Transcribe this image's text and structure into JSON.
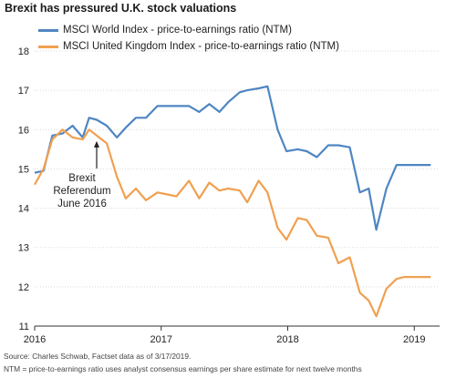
{
  "title": "Brexit has pressured U.K. stock valuations",
  "source": "Source: Charles Schwab, Factset data as of 3/17/2019.",
  "note": "NTM = price-to-earnings ratio uses analyst consensus earnings per share estimate for next twelve months",
  "chart_data": {
    "type": "line",
    "title": "Brexit has pressured U.K. stock valuations",
    "xlabel": "",
    "ylabel": "",
    "xlim": [
      2016.0,
      2019.2
    ],
    "ylim": [
      11,
      18
    ],
    "y_ticks": [
      11,
      12,
      13,
      14,
      15,
      16,
      17,
      18
    ],
    "x_ticks": [
      {
        "value": 2016,
        "label": "2016"
      },
      {
        "value": 2017,
        "label": "2017"
      },
      {
        "value": 2018,
        "label": "2018"
      },
      {
        "value": 2019,
        "label": "2019"
      }
    ],
    "grid": "horizontal",
    "legend_placement": "top-left",
    "series": [
      {
        "name": "MSCI World Index - price-to-earnings ratio (NTM)",
        "color": "#4f86c2",
        "x": [
          2016.0,
          2016.07,
          2016.14,
          2016.22,
          2016.3,
          2016.38,
          2016.43,
          2016.49,
          2016.57,
          2016.65,
          2016.72,
          2016.8,
          2016.88,
          2016.97,
          2017.05,
          2017.12,
          2017.22,
          2017.3,
          2017.38,
          2017.46,
          2017.53,
          2017.62,
          2017.68,
          2017.77,
          2017.84,
          2017.92,
          2017.99,
          2018.08,
          2018.15,
          2018.23,
          2018.32,
          2018.4,
          2018.49,
          2018.57,
          2018.64,
          2018.7,
          2018.78,
          2018.86,
          2018.92,
          2019.0,
          2019.07,
          2019.13
        ],
        "y": [
          14.9,
          14.95,
          15.85,
          15.9,
          16.1,
          15.8,
          16.3,
          16.25,
          16.1,
          15.8,
          16.05,
          16.3,
          16.3,
          16.6,
          16.6,
          16.6,
          16.6,
          16.45,
          16.65,
          16.45,
          16.7,
          16.95,
          17.0,
          17.05,
          17.1,
          16.0,
          15.45,
          15.5,
          15.45,
          15.3,
          15.6,
          15.6,
          15.55,
          14.4,
          14.5,
          13.45,
          14.5,
          15.1,
          15.1,
          15.1,
          15.1,
          15.1
        ]
      },
      {
        "name": "MSCI United Kingdom Index - price-to-earnings ratio (NTM)",
        "color": "#f0a050",
        "x": [
          2016.0,
          2016.07,
          2016.14,
          2016.22,
          2016.3,
          2016.38,
          2016.43,
          2016.49,
          2016.57,
          2016.65,
          2016.72,
          2016.8,
          2016.88,
          2016.97,
          2017.05,
          2017.12,
          2017.22,
          2017.3,
          2017.38,
          2017.46,
          2017.53,
          2017.62,
          2017.68,
          2017.77,
          2017.84,
          2017.92,
          2017.99,
          2018.08,
          2018.15,
          2018.23,
          2018.32,
          2018.4,
          2018.49,
          2018.57,
          2018.64,
          2018.7,
          2018.78,
          2018.86,
          2018.92,
          2019.0,
          2019.07,
          2019.13
        ],
        "y": [
          14.6,
          15.0,
          15.75,
          16.0,
          15.8,
          15.75,
          16.0,
          15.85,
          15.65,
          14.8,
          14.25,
          14.5,
          14.2,
          14.4,
          14.35,
          14.3,
          14.7,
          14.25,
          14.65,
          14.45,
          14.5,
          14.45,
          14.15,
          14.7,
          14.4,
          13.5,
          13.2,
          13.75,
          13.7,
          13.3,
          13.25,
          12.6,
          12.75,
          11.85,
          11.65,
          11.25,
          11.95,
          12.2,
          12.25,
          12.25,
          12.25,
          12.25
        ]
      }
    ],
    "annotations": [
      {
        "text": [
          "Brexit",
          "Referendum",
          "June 2016"
        ],
        "x": 2016.49,
        "y": 15.8
      }
    ]
  }
}
